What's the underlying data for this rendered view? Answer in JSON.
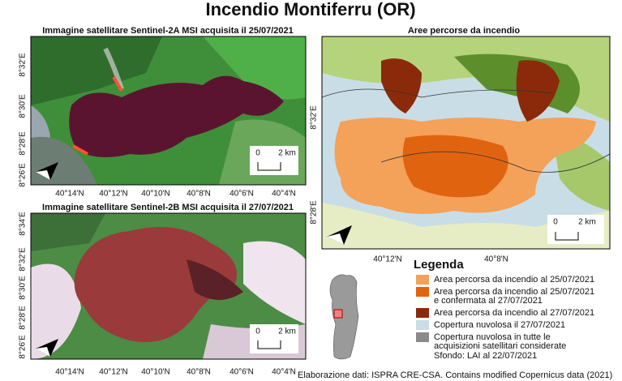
{
  "title": "Incendio Montiferru (OR)",
  "panels": [
    {
      "title": "Immagine satellitare Sentinel-2A MSI acquisita il 25/07/2021",
      "y_labels": [
        "8°32'E",
        "8°30'E",
        "8°28'E",
        "8°26'E"
      ],
      "x_labels": [
        "40°14'N",
        "40°12'N",
        "40°10'N",
        "40°8'N",
        "40°6'N",
        "40°4'N"
      ],
      "scale": {
        "zero": "0",
        "distance": "2 km"
      }
    },
    {
      "title": "Immagine satellitare Sentinel-2B MSI acquisita il 27/07/2021",
      "y_labels": [
        "8°34'E",
        "8°32'E",
        "8°30'E",
        "8°28'E",
        "8°26'E"
      ],
      "x_labels": [
        "40°14'N",
        "40°12'N",
        "40°10'N",
        "40°8'N",
        "40°6'N",
        "40°4'N"
      ],
      "scale": {
        "zero": "0",
        "distance": "2 km"
      }
    }
  ],
  "map": {
    "title": "Aree percorse da incendio",
    "y_labels": [
      "8°32'E",
      "8°28'E"
    ],
    "x_labels": [
      "40°12'N",
      "40°8'N"
    ],
    "scale": {
      "zero": "0",
      "distance": "2 km"
    }
  },
  "legend": {
    "title": "Legenda",
    "items": [
      {
        "color": "#f4a15a",
        "lines": [
          "Area percorsa da incendio al 25/07/2021"
        ]
      },
      {
        "color": "#e0640f",
        "lines": [
          "Area percorsa da incendio al 25/07/2021",
          "e confermata al 27/07/2021"
        ]
      },
      {
        "color": "#8b2a0a",
        "lines": [
          "Area percorsa da incendio al 27/07/2021"
        ]
      },
      {
        "color": "#c9dde6",
        "lines": [
          "Copertura nuvolosa il 27/07/2021"
        ]
      },
      {
        "color": "#8a8a8a",
        "lines": [
          "Copertura nuvolosa in tutte le",
          "acquisizioni satellitari considerate"
        ]
      }
    ],
    "note": "Sfondo: LAI al 22/07/2021"
  },
  "credit": "Elaborazione dati: ISPRA CRE-CSA. Contains modified Copernicus data (2021)"
}
